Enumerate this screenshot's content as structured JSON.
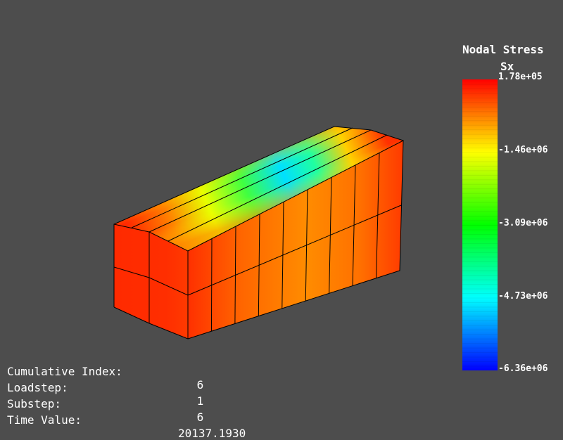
{
  "legend": {
    "title": "Nodal Stress",
    "component": "Sx",
    "max_label": "1.78e+05",
    "tick_labels": [
      "-1.46e+06",
      "-3.09e+06",
      "-4.73e+06",
      "-6.36e+06"
    ],
    "color_stops": [
      "#ff0000",
      "#ffff00",
      "#00ff00",
      "#00ffff",
      "#0000ff"
    ]
  },
  "info": {
    "rows": [
      {
        "label": "Cumulative Index:",
        "value": "6"
      },
      {
        "label": "Loadstep:",
        "value": "1"
      },
      {
        "label": "Substep:",
        "value": "6"
      },
      {
        "label": "Time Value:",
        "value": "20137.1930"
      }
    ]
  },
  "colors": {
    "background": "#4d4d4d",
    "mesh_lines": "#000000"
  }
}
